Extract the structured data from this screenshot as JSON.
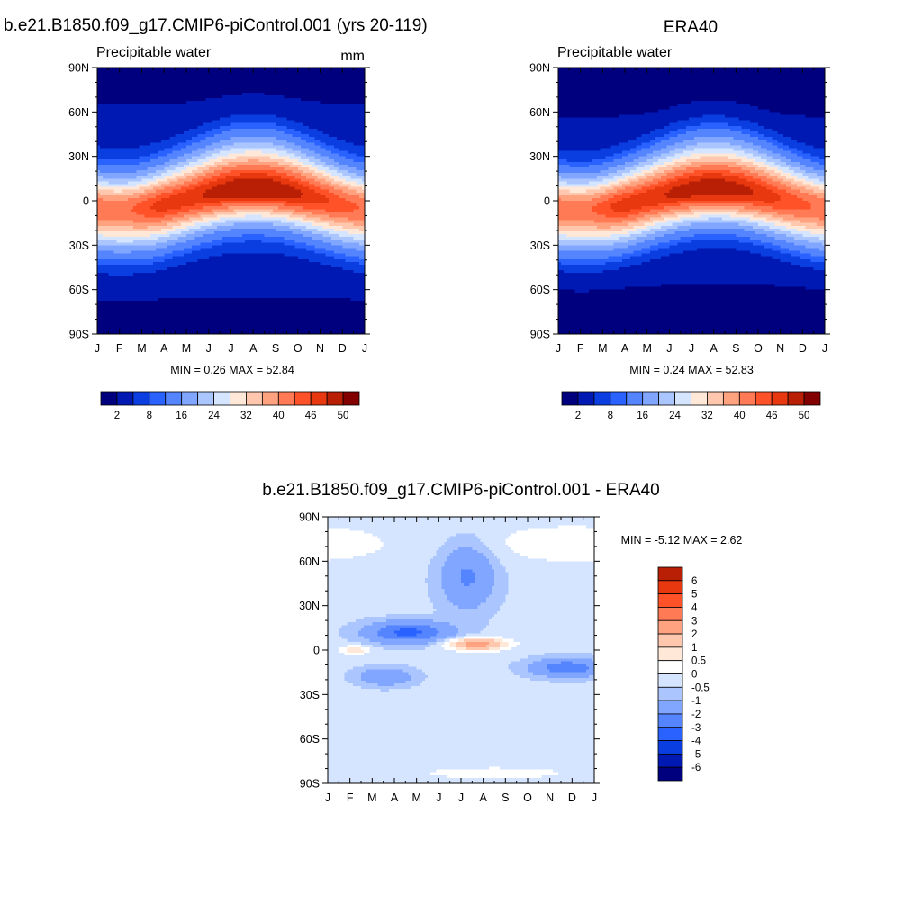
{
  "colors": {
    "abs_levels": [
      "#00007f",
      "#0019b3",
      "#0a3ee0",
      "#2a62ff",
      "#5584ff",
      "#80a6ff",
      "#abc6ff",
      "#d5e5ff",
      "#ffe8d8",
      "#ffc7ae",
      "#ffa27f",
      "#ff7a55",
      "#ff5228",
      "#e83810",
      "#b81f05",
      "#830000"
    ],
    "diff_levels": [
      "#00007f",
      "#0019b3",
      "#0a3ee0",
      "#2a62ff",
      "#5584ff",
      "#80a6ff",
      "#abc6ff",
      "#d5e5ff",
      "#ffffff",
      "#ffe8d8",
      "#ffc7ae",
      "#ffa27f",
      "#ff7a55",
      "#ff5228",
      "#e83810",
      "#b81f05",
      "#830000"
    ]
  },
  "chart_data": [
    {
      "type": "heatmap",
      "title": "b.e21.B1850.f09_g17.CMIP6-piControl.001 (yrs 20-119)",
      "subtitle_left": "Precipitable water",
      "units": "mm",
      "x_ticks": [
        "J",
        "F",
        "M",
        "A",
        "M",
        "J",
        "J",
        "A",
        "S",
        "O",
        "N",
        "D",
        "J"
      ],
      "y_ticks": [
        "90N",
        "60N",
        "30N",
        "0",
        "30S",
        "60S",
        "90S"
      ],
      "ylim": [
        -90,
        90
      ],
      "stats": "MIN =   0.26 MAX =   52.84",
      "colorbar_labels": [
        "2",
        "8",
        "16",
        "24",
        "32",
        "40",
        "46",
        "50"
      ],
      "contour_levels": [
        2,
        4,
        6,
        8,
        12,
        16,
        20,
        24,
        28,
        32,
        36,
        40,
        43,
        46,
        50
      ]
    },
    {
      "type": "heatmap",
      "title": "ERA40",
      "subtitle_left": "Precipitable water",
      "units": "",
      "x_ticks": [
        "J",
        "F",
        "M",
        "A",
        "M",
        "J",
        "J",
        "A",
        "S",
        "O",
        "N",
        "D",
        "J"
      ],
      "y_ticks": [
        "90N",
        "60N",
        "30N",
        "0",
        "30S",
        "60S",
        "90S"
      ],
      "ylim": [
        -90,
        90
      ],
      "stats": "MIN =   0.24 MAX =   52.83",
      "colorbar_labels": [
        "2",
        "8",
        "16",
        "24",
        "32",
        "40",
        "46",
        "50"
      ],
      "contour_levels": [
        2,
        4,
        6,
        8,
        12,
        16,
        20,
        24,
        28,
        32,
        36,
        40,
        43,
        46,
        50
      ]
    },
    {
      "type": "heatmap",
      "title": "b.e21.B1850.f09_g17.CMIP6-piControl.001 - ERA40",
      "x_ticks": [
        "J",
        "F",
        "M",
        "A",
        "M",
        "J",
        "J",
        "A",
        "S",
        "O",
        "N",
        "D",
        "J"
      ],
      "y_ticks": [
        "90N",
        "60N",
        "30N",
        "0",
        "30S",
        "60S",
        "90S"
      ],
      "ylim": [
        -90,
        90
      ],
      "stats": "MIN =  -5.12 MAX =   2.62",
      "colorbar_labels": [
        "6",
        "5",
        "4",
        "3",
        "2",
        "1",
        "0.5",
        "0",
        "-0.5",
        "-1",
        "-2",
        "-3",
        "-4",
        "-5",
        "-6"
      ],
      "contour_levels": [
        -6,
        -5,
        -4,
        -3,
        -2,
        -1,
        -0.5,
        0,
        0.5,
        1,
        2,
        3,
        4,
        5,
        6
      ]
    }
  ]
}
